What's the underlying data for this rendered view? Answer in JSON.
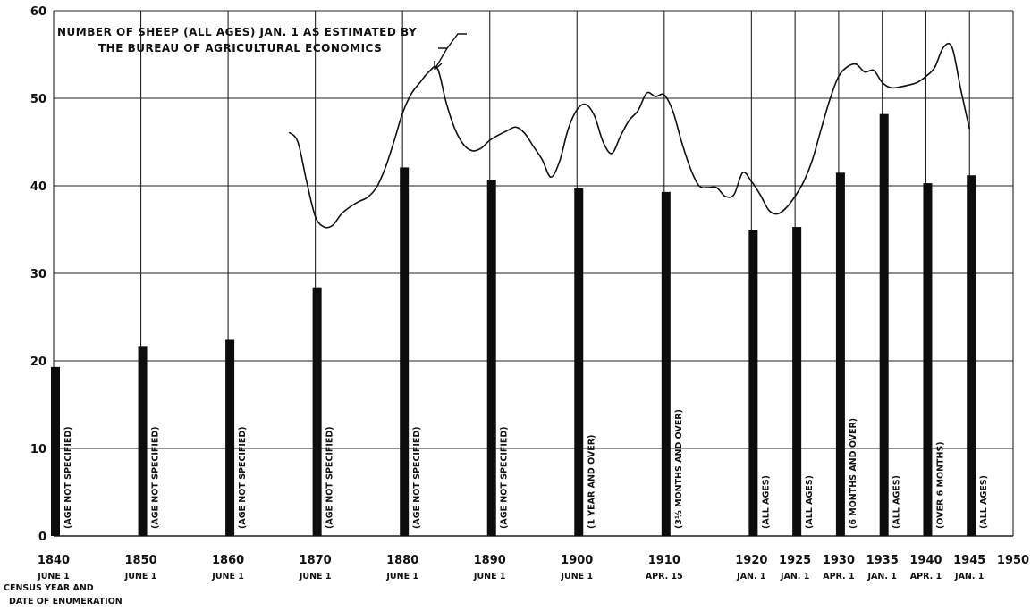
{
  "chart_data": {
    "type": "bar",
    "xlabel": [
      "CENSUS YEAR AND",
      "DATE OF ENUMERATION"
    ],
    "ylim": [
      0,
      60
    ],
    "yticks": [
      0,
      10,
      20,
      30,
      40,
      50,
      60
    ],
    "xlim": [
      1840,
      1950
    ],
    "grid": true,
    "xticks": [
      {
        "year": 1840,
        "label": "1840",
        "date": "JUNE 1"
      },
      {
        "year": 1850,
        "label": "1850",
        "date": "JUNE 1"
      },
      {
        "year": 1860,
        "label": "1860",
        "date": "JUNE 1"
      },
      {
        "year": 1870,
        "label": "1870",
        "date": "JUNE 1"
      },
      {
        "year": 1880,
        "label": "1880",
        "date": "JUNE 1"
      },
      {
        "year": 1890,
        "label": "1890",
        "date": "JUNE 1"
      },
      {
        "year": 1900,
        "label": "1900",
        "date": "JUNE 1"
      },
      {
        "year": 1910,
        "label": "1910",
        "date": "APR. 15"
      },
      {
        "year": 1920,
        "label": "1920",
        "date": "JAN. 1"
      },
      {
        "year": 1925,
        "label": "1925",
        "date": "JAN. 1"
      },
      {
        "year": 1930,
        "label": "1930",
        "date": "APR. 1"
      },
      {
        "year": 1935,
        "label": "1935",
        "date": "JAN. 1"
      },
      {
        "year": 1940,
        "label": "1940",
        "date": "APR. 1"
      },
      {
        "year": 1945,
        "label": "1945",
        "date": "JAN. 1"
      },
      {
        "year": 1950,
        "label": "1950",
        "date": ""
      }
    ],
    "bars": [
      {
        "year": 1840,
        "value": 19.3,
        "note": "(AGE NOT SPECIFIED)"
      },
      {
        "year": 1850,
        "value": 21.7,
        "note": "(AGE NOT SPECIFIED)"
      },
      {
        "year": 1860,
        "value": 22.4,
        "note": "(AGE NOT SPECIFIED)"
      },
      {
        "year": 1870,
        "value": 28.4,
        "note": "(AGE NOT SPECIFIED)"
      },
      {
        "year": 1880,
        "value": 42.1,
        "note": "(AGE NOT SPECIFIED)"
      },
      {
        "year": 1890,
        "value": 40.7,
        "note": "(AGE NOT SPECIFIED)"
      },
      {
        "year": 1900,
        "value": 39.7,
        "note": "(1 YEAR AND OVER)"
      },
      {
        "year": 1910,
        "value": 39.3,
        "note": "(3½ MONTHS AND OVER)"
      },
      {
        "year": 1920,
        "value": 35.0,
        "note": "(ALL AGES)"
      },
      {
        "year": 1925,
        "value": 35.3,
        "note": "(ALL AGES)"
      },
      {
        "year": 1930,
        "value": 41.5,
        "note": "(6 MONTHS AND OVER)"
      },
      {
        "year": 1935,
        "value": 48.2,
        "note": "(ALL AGES)"
      },
      {
        "year": 1940,
        "value": 40.3,
        "note": "(OVER 6 MONTHS)"
      },
      {
        "year": 1945,
        "value": 41.2,
        "note": "(ALL AGES)"
      }
    ],
    "series": [
      {
        "type": "line",
        "x": [
          1867,
          1868,
          1869,
          1870,
          1871,
          1872,
          1873,
          1874,
          1875,
          1876,
          1877,
          1878,
          1879,
          1880,
          1881,
          1882,
          1883,
          1884,
          1885,
          1886,
          1887,
          1888,
          1889,
          1890,
          1891,
          1892,
          1893,
          1894,
          1895,
          1896,
          1897,
          1898,
          1899,
          1900,
          1901,
          1902,
          1903,
          1904,
          1905,
          1906,
          1907,
          1908,
          1909,
          1910,
          1911,
          1912,
          1913,
          1914,
          1915,
          1916,
          1917,
          1918,
          1919,
          1920,
          1921,
          1922,
          1923,
          1924,
          1925,
          1926,
          1927,
          1928,
          1929,
          1930,
          1931,
          1932,
          1933,
          1934,
          1935,
          1936,
          1937,
          1938,
          1939,
          1940,
          1941,
          1942,
          1943,
          1944,
          1945
        ],
        "y": [
          46.1,
          45.0,
          40.5,
          36.5,
          35.3,
          35.5,
          36.8,
          37.6,
          38.2,
          38.7,
          39.8,
          42.0,
          45.0,
          48.3,
          50.5,
          51.8,
          53.0,
          53.4,
          49.5,
          46.5,
          44.7,
          44.0,
          44.3,
          45.2,
          45.8,
          46.3,
          46.7,
          46.0,
          44.5,
          43.0,
          41.0,
          42.8,
          46.5,
          48.7,
          49.3,
          48.0,
          45.0,
          43.7,
          45.7,
          47.5,
          48.6,
          50.6,
          50.2,
          50.4,
          48.5,
          45.0,
          42.0,
          40.0,
          39.8,
          39.8,
          38.8,
          39.0,
          41.5,
          40.5,
          39.0,
          37.2,
          36.8,
          37.5,
          38.8,
          40.5,
          43.0,
          46.5,
          49.9,
          52.5,
          53.6,
          53.9,
          53.0,
          53.2,
          51.8,
          51.2,
          51.3,
          51.5,
          51.8,
          52.5,
          53.5,
          55.8,
          55.8,
          51.0,
          46.5
        ],
        "annotation": [
          "NUMBER OF SHEEP (ALL AGES) JAN. 1 AS ESTIMATED BY",
          "THE BUREAU OF AGRICULTURAL ECONOMICS"
        ]
      }
    ]
  }
}
